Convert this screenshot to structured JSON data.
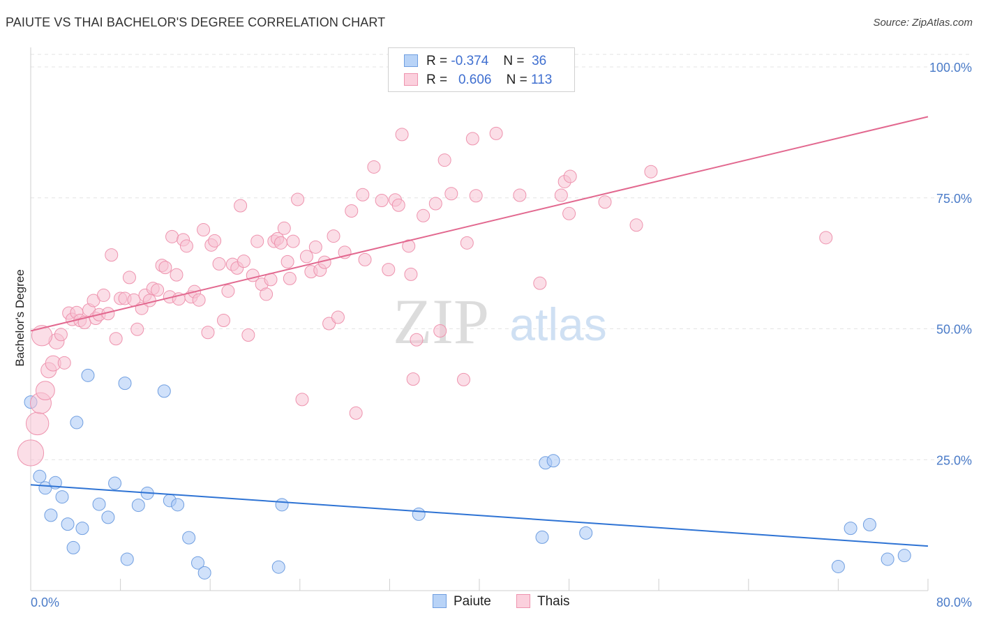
{
  "title": "PAIUTE VS THAI BACHELOR'S DEGREE CORRELATION CHART",
  "source": "Source: ZipAtlas.com",
  "watermark": {
    "zip": "ZIP",
    "atlas": "atlas"
  },
  "legend": {
    "r_label": "R =",
    "n_label": "N =",
    "rows": [
      {
        "r": "-0.374",
        "n": "36"
      },
      {
        "r": "0.606",
        "n": "113"
      }
    ]
  },
  "chart_data": {
    "type": "scatter",
    "xlabel": "",
    "ylabel": "Bachelor's Degree",
    "x_tick_labels": [
      "0.0%",
      "80.0%"
    ],
    "y_tick_labels": [
      "100.0%",
      "75.0%",
      "50.0%",
      "25.0%"
    ],
    "xlim": [
      0,
      80
    ],
    "ylim": [
      0,
      100
    ],
    "grid": true,
    "legend_position": "top-center",
    "series": [
      {
        "name": "Paiute",
        "color": "#a9c8f5",
        "stroke": "#6f9ee0",
        "line_color": "#2e73d4",
        "trend": {
          "x": [
            0,
            80
          ],
          "y": [
            20.2,
            8.5
          ]
        },
        "points": [
          [
            0.0,
            36.0
          ],
          [
            0.8,
            21.8
          ],
          [
            1.3,
            19.6
          ],
          [
            1.8,
            14.4
          ],
          [
            2.2,
            20.6
          ],
          [
            2.8,
            17.9
          ],
          [
            3.3,
            12.7
          ],
          [
            3.8,
            8.2
          ],
          [
            4.1,
            32.1
          ],
          [
            4.6,
            11.9
          ],
          [
            5.1,
            41.1
          ],
          [
            6.1,
            16.5
          ],
          [
            6.9,
            14.0
          ],
          [
            7.5,
            20.5
          ],
          [
            8.4,
            39.6
          ],
          [
            8.6,
            6.0
          ],
          [
            9.6,
            16.3
          ],
          [
            10.4,
            18.6
          ],
          [
            11.9,
            38.1
          ],
          [
            12.4,
            17.2
          ],
          [
            13.1,
            16.4
          ],
          [
            14.1,
            10.1
          ],
          [
            14.9,
            5.3
          ],
          [
            15.5,
            3.4
          ],
          [
            22.4,
            16.4
          ],
          [
            22.1,
            4.5
          ],
          [
            34.6,
            14.6
          ],
          [
            45.6,
            10.2
          ],
          [
            45.9,
            24.4
          ],
          [
            46.6,
            24.8
          ],
          [
            49.5,
            11.0
          ],
          [
            72.0,
            4.6
          ],
          [
            73.1,
            11.9
          ],
          [
            74.8,
            12.6
          ],
          [
            76.4,
            6.0
          ],
          [
            77.9,
            6.7
          ]
        ]
      },
      {
        "name": "Thais",
        "color": "#f8c3d3",
        "stroke": "#ee93ae",
        "line_color": "#e2688f",
        "trend": {
          "x": [
            0,
            80
          ],
          "y": [
            49.6,
            90.5
          ]
        },
        "points": [
          [
            0.0,
            26.3
          ],
          [
            0.6,
            31.9
          ],
          [
            0.9,
            35.8
          ],
          [
            1.3,
            38.2
          ],
          [
            1.6,
            42.1
          ],
          [
            2.0,
            43.4
          ],
          [
            2.3,
            47.6
          ],
          [
            2.7,
            48.9
          ],
          [
            3.0,
            43.5
          ],
          [
            3.4,
            53.0
          ],
          [
            3.7,
            51.8
          ],
          [
            4.1,
            53.1
          ],
          [
            4.4,
            51.6
          ],
          [
            4.8,
            51.2
          ],
          [
            5.2,
            53.6
          ],
          [
            5.6,
            55.4
          ],
          [
            5.8,
            52.0
          ],
          [
            6.1,
            52.7
          ],
          [
            6.5,
            56.4
          ],
          [
            6.9,
            52.9
          ],
          [
            7.2,
            64.1
          ],
          [
            7.6,
            48.1
          ],
          [
            8.0,
            55.8
          ],
          [
            8.4,
            55.8
          ],
          [
            8.8,
            59.8
          ],
          [
            9.2,
            55.5
          ],
          [
            9.5,
            49.9
          ],
          [
            9.9,
            53.9
          ],
          [
            10.2,
            56.4
          ],
          [
            10.6,
            55.4
          ],
          [
            10.9,
            57.7
          ],
          [
            11.3,
            57.4
          ],
          [
            11.7,
            62.1
          ],
          [
            12.0,
            61.7
          ],
          [
            12.4,
            56.1
          ],
          [
            12.6,
            67.6
          ],
          [
            13.2,
            55.7
          ],
          [
            13.6,
            67.0
          ],
          [
            13.9,
            65.8
          ],
          [
            14.3,
            56.1
          ],
          [
            14.6,
            57.1
          ],
          [
            15.0,
            55.5
          ],
          [
            15.4,
            68.9
          ],
          [
            15.8,
            49.3
          ],
          [
            16.1,
            66.0
          ],
          [
            16.4,
            66.8
          ],
          [
            16.8,
            62.4
          ],
          [
            17.2,
            51.6
          ],
          [
            17.6,
            57.2
          ],
          [
            18.0,
            62.3
          ],
          [
            18.4,
            61.6
          ],
          [
            18.7,
            73.5
          ],
          [
            19.0,
            62.9
          ],
          [
            19.4,
            48.8
          ],
          [
            19.8,
            60.2
          ],
          [
            20.2,
            66.7
          ],
          [
            20.6,
            58.5
          ],
          [
            21.0,
            56.6
          ],
          [
            21.4,
            59.4
          ],
          [
            21.7,
            66.7
          ],
          [
            22.0,
            67.2
          ],
          [
            22.3,
            66.4
          ],
          [
            22.6,
            69.2
          ],
          [
            22.9,
            62.8
          ],
          [
            23.1,
            59.6
          ],
          [
            23.4,
            66.7
          ],
          [
            23.8,
            74.7
          ],
          [
            24.2,
            36.5
          ],
          [
            24.6,
            63.8
          ],
          [
            25.0,
            60.9
          ],
          [
            25.4,
            65.6
          ],
          [
            25.8,
            61.2
          ],
          [
            26.2,
            62.7
          ],
          [
            26.6,
            51.0
          ],
          [
            27.0,
            67.7
          ],
          [
            27.4,
            52.2
          ],
          [
            28.0,
            64.6
          ],
          [
            28.6,
            72.5
          ],
          [
            29.0,
            33.9
          ],
          [
            29.6,
            75.6
          ],
          [
            29.8,
            63.2
          ],
          [
            30.6,
            80.9
          ],
          [
            31.3,
            74.5
          ],
          [
            31.9,
            61.3
          ],
          [
            32.5,
            74.6
          ],
          [
            32.8,
            73.6
          ],
          [
            33.1,
            87.1
          ],
          [
            33.7,
            65.8
          ],
          [
            33.9,
            60.4
          ],
          [
            34.1,
            40.4
          ],
          [
            34.4,
            47.9
          ],
          [
            35.0,
            71.6
          ],
          [
            36.1,
            73.9
          ],
          [
            36.5,
            49.6
          ],
          [
            36.9,
            82.2
          ],
          [
            37.5,
            75.8
          ],
          [
            38.6,
            40.3
          ],
          [
            38.9,
            66.4
          ],
          [
            39.4,
            86.3
          ],
          [
            39.7,
            75.4
          ],
          [
            41.5,
            87.3
          ],
          [
            43.6,
            75.5
          ],
          [
            45.4,
            58.7
          ],
          [
            47.3,
            75.5
          ],
          [
            47.6,
            78.1
          ],
          [
            48.0,
            72.0
          ],
          [
            48.1,
            79.1
          ],
          [
            51.2,
            74.2
          ],
          [
            54.0,
            69.8
          ],
          [
            55.3,
            80.0
          ],
          [
            70.9,
            67.4
          ],
          [
            1.0,
            48.7
          ],
          [
            13.0,
            60.3
          ]
        ]
      }
    ]
  }
}
